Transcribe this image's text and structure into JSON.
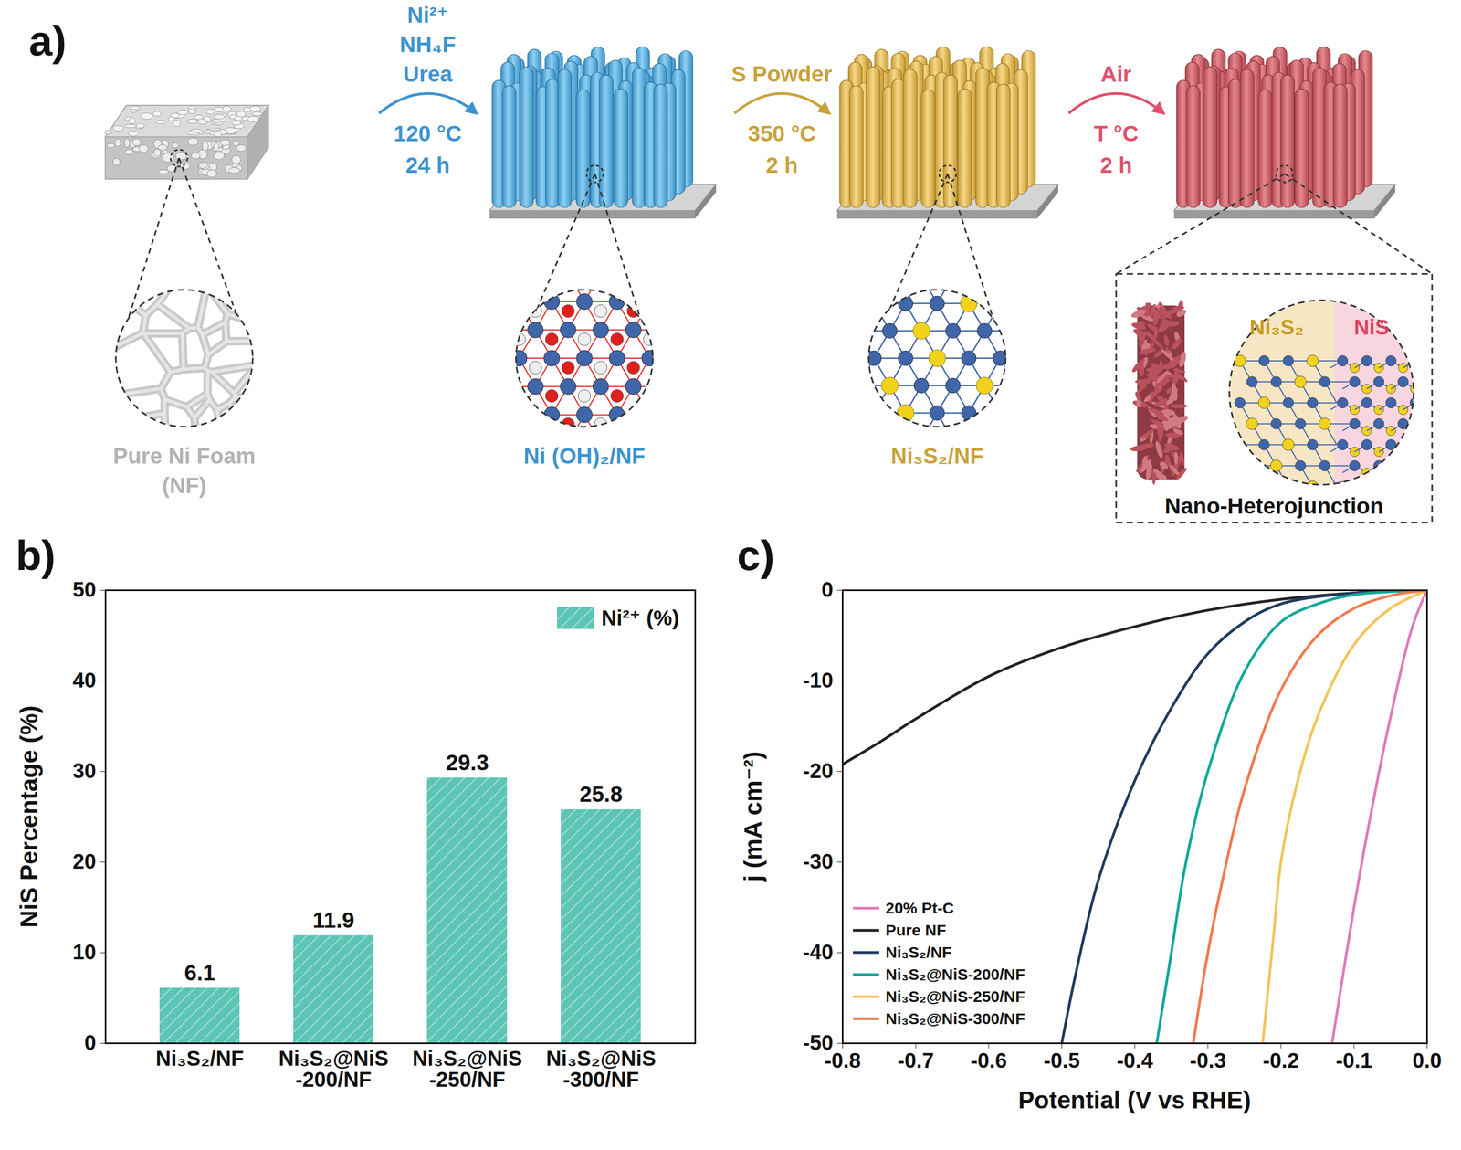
{
  "diagram": {
    "panel": "a)",
    "stages": [
      {
        "label": [
          "Pure Ni Foam",
          "(NF)"
        ]
      },
      {
        "label": [
          "Ni (OH)₂/NF"
        ]
      },
      {
        "label": [
          "Ni₃S₂/NF"
        ]
      }
    ],
    "steps": [
      {
        "above": [
          "Ni²⁺",
          "NH₄F",
          "Urea"
        ],
        "below": [
          "120 °C",
          "24 h"
        ]
      },
      {
        "above": [
          "S Powder"
        ],
        "below": [
          "350 °C",
          "2 h"
        ]
      },
      {
        "above": [
          "Air"
        ],
        "below": [
          "T °C",
          "2 h"
        ]
      }
    ],
    "heterojunction": {
      "phases": [
        "Ni₃S₂",
        "NiS"
      ],
      "label": "Nano-Heterojunction"
    }
  },
  "chart_data": [
    {
      "panel": "b)",
      "type": "bar",
      "categories": [
        "Ni₃S₂/NF",
        "Ni₃S₂@NiS-200/NF",
        "Ni₃S₂@NiS-250/NF",
        "Ni₃S₂@NiS-300/NF"
      ],
      "series": [
        {
          "name": "Ni²⁺ (%)",
          "color": "#5cc5b5",
          "values": [
            6.1,
            11.9,
            29.3,
            25.8
          ]
        }
      ],
      "ylabel": "NiS Percentage (%)",
      "ylim": [
        0,
        50
      ],
      "yticks": [
        0,
        10,
        20,
        30,
        40,
        50
      ],
      "legend": "top-right",
      "data_labels": true,
      "grid": false
    },
    {
      "panel": "c)",
      "type": "line",
      "xlabel": "Potential (V vs RHE)",
      "ylabel": "j (mA cm⁻²)",
      "xlim": [
        -0.8,
        0
      ],
      "xticks": [
        -0.8,
        -0.7,
        -0.6,
        -0.5,
        -0.4,
        -0.3,
        -0.2,
        -0.1,
        {
          "value": 0,
          "label": "0.0"
        }
      ],
      "ylim": [
        -50,
        0
      ],
      "yticks": [
        -50,
        -40,
        -30,
        -20,
        -10,
        0
      ],
      "legend": "bottom-left",
      "grid": false,
      "series": [
        {
          "name": "20% Pt-C",
          "color": "#e07bb8",
          "x": [
            0,
            -0.02,
            -0.05,
            -0.08,
            -0.1,
            -0.13
          ],
          "values": [
            0,
            -4,
            -14,
            -26,
            -35,
            -50
          ]
        },
        {
          "name": "Pure NF",
          "color": "#222222",
          "x": [
            0,
            -0.1,
            -0.2,
            -0.3,
            -0.4,
            -0.5,
            -0.6,
            -0.7,
            -0.75,
            -0.8
          ],
          "values": [
            0,
            -0.3,
            -1.0,
            -2.2,
            -4.0,
            -6.3,
            -9.5,
            -14.2,
            -16.8,
            -19.2
          ]
        },
        {
          "name": "Ni₃S₂/NF",
          "color": "#1f3b5e",
          "x": [
            0,
            -0.1,
            -0.2,
            -0.25,
            -0.3,
            -0.35,
            -0.4,
            -0.45,
            -0.48,
            -0.5
          ],
          "values": [
            0,
            -0.3,
            -1.5,
            -3.5,
            -7,
            -13,
            -21,
            -32,
            -42,
            -50
          ]
        },
        {
          "name": "Ni₃S₂@NiS-200/NF",
          "color": "#10a89a",
          "x": [
            0,
            -0.1,
            -0.15,
            -0.2,
            -0.25,
            -0.3,
            -0.33,
            -0.35,
            -0.37
          ],
          "values": [
            0,
            -0.5,
            -1.5,
            -3.5,
            -9,
            -20,
            -30,
            -40,
            -50
          ]
        },
        {
          "name": "Ni₃S₂@NiS-250/NF",
          "color": "#f2c45a",
          "x": [
            0,
            -0.05,
            -0.1,
            -0.15,
            -0.18,
            -0.2,
            -0.21,
            -0.225
          ],
          "values": [
            0,
            -2,
            -6,
            -14,
            -22,
            -30,
            -38,
            -50
          ]
        },
        {
          "name": "Ni₃S₂@NiS-300/NF",
          "color": "#f37a4e",
          "x": [
            0,
            -0.05,
            -0.1,
            -0.15,
            -0.2,
            -0.25,
            -0.28,
            -0.3,
            -0.32
          ],
          "values": [
            0,
            -0.6,
            -2,
            -5,
            -11,
            -22,
            -32,
            -40,
            -50
          ]
        }
      ]
    }
  ]
}
